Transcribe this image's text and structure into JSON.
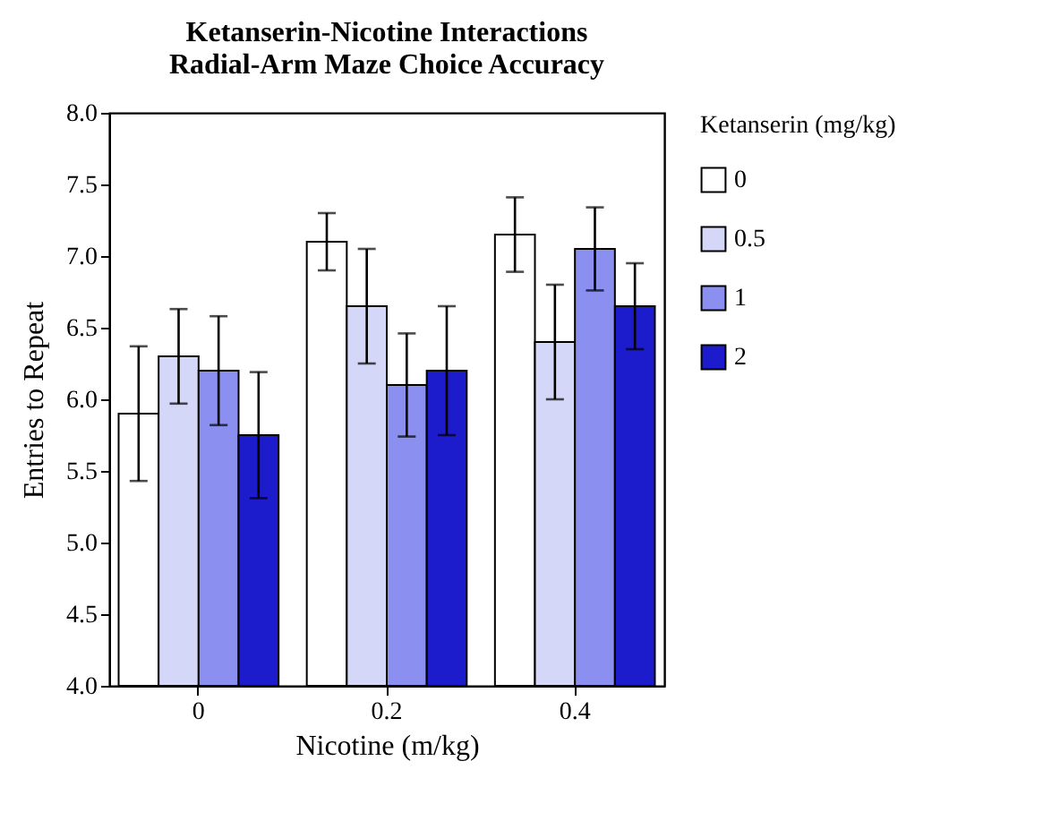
{
  "chart_data": {
    "type": "bar",
    "title": "Ketanserin-Nicotine Interactions\nRadial-Arm Maze Choice Accuracy",
    "xlabel": "Nicotine (m/kg)",
    "ylabel": "Entries to Repeat",
    "legend_title": "Ketanserin (mg/kg)",
    "categories": [
      "0",
      "0.2",
      "0.4"
    ],
    "series": [
      {
        "name": "0",
        "color": "#ffffff",
        "values": [
          5.9,
          7.1,
          7.15
        ],
        "errors": [
          0.47,
          0.2,
          0.26
        ]
      },
      {
        "name": "0.5",
        "color": "#d4d7f7",
        "values": [
          6.3,
          6.65,
          6.4
        ],
        "errors": [
          0.33,
          0.4,
          0.4
        ]
      },
      {
        "name": "1",
        "color": "#8b8ff0",
        "values": [
          6.2,
          6.1,
          7.05
        ],
        "errors": [
          0.38,
          0.36,
          0.29
        ]
      },
      {
        "name": "2",
        "color": "#1c1ccc",
        "values": [
          5.75,
          6.2,
          6.65
        ],
        "errors": [
          0.44,
          0.45,
          0.3
        ]
      }
    ],
    "ylim": [
      4,
      8
    ],
    "yticks": [
      {
        "value": 4,
        "label": "4.0"
      },
      {
        "value": 4.5,
        "label": "4.5"
      },
      {
        "value": 5,
        "label": "5.0"
      },
      {
        "value": 5.5,
        "label": "5.5"
      },
      {
        "value": 6,
        "label": "6.0"
      },
      {
        "value": 6.5,
        "label": "6.5"
      },
      {
        "value": 7,
        "label": "7.0"
      },
      {
        "value": 7.5,
        "label": "7.5"
      },
      {
        "value": 8,
        "label": "8.0"
      }
    ],
    "grid": false,
    "legend": "right"
  }
}
